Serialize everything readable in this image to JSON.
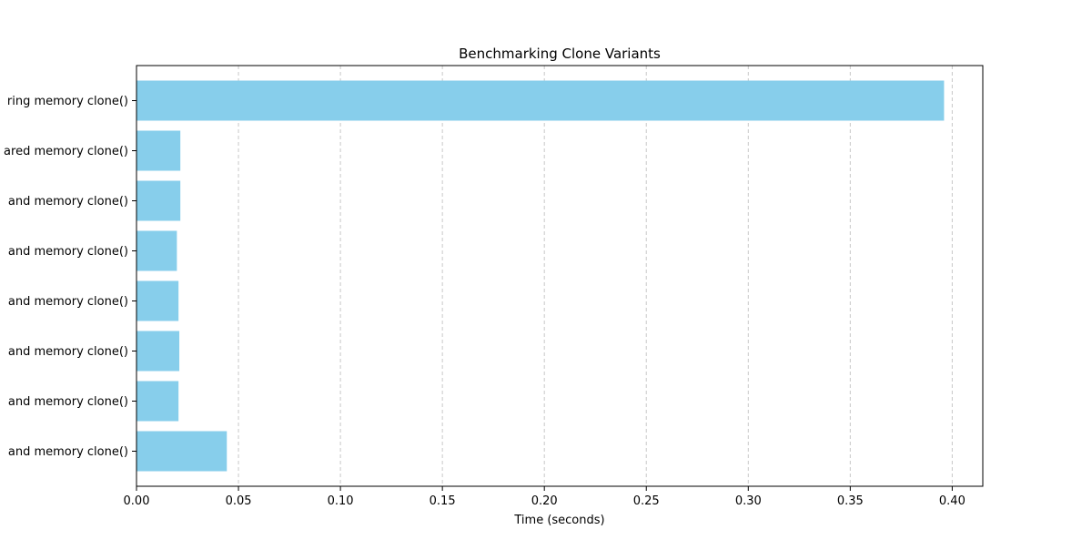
{
  "chart_data": {
    "type": "bar",
    "orientation": "horizontal",
    "title": "Benchmarking Clone Variants",
    "xlabel": "Time (seconds)",
    "ylabel": "",
    "categories": [
      "ring memory clone()",
      "ared memory clone()",
      "and memory clone()",
      "and memory clone()",
      "and memory clone()",
      "and memory clone()",
      "and memory clone()",
      "and memory clone()"
    ],
    "values": [
      0.396,
      0.0215,
      0.0215,
      0.0198,
      0.0206,
      0.021,
      0.0206,
      0.0443
    ],
    "xlim": [
      0,
      0.415
    ],
    "xticks": [
      0.0,
      0.05,
      0.1,
      0.15,
      0.2,
      0.25,
      0.3,
      0.35,
      0.4
    ],
    "xtick_labels": [
      "0.00",
      "0.05",
      "0.10",
      "0.15",
      "0.20",
      "0.25",
      "0.30",
      "0.35",
      "0.40"
    ],
    "grid": {
      "x": true,
      "y": false,
      "style": "dashed"
    },
    "bar_color": "#87ceeb",
    "grid_color": "#c8c8c8",
    "axis_color": "#000000"
  }
}
